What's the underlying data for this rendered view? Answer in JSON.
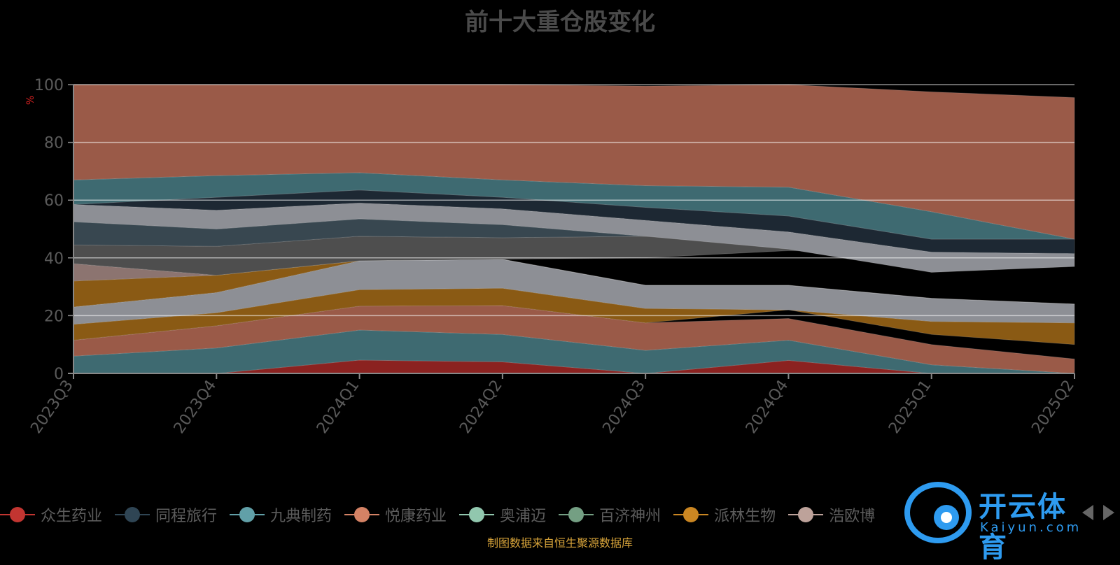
{
  "chart_data": {
    "type": "area",
    "title": "前十大重仓股变化",
    "ylabel": "%",
    "ylim": [
      0,
      100
    ],
    "yticks": [
      0,
      20,
      40,
      60,
      80,
      100
    ],
    "grid": true,
    "legend_position": "bottom",
    "categories": [
      "2023Q3",
      "2023Q4",
      "2024Q1",
      "2024Q2",
      "2024Q3",
      "2024Q4",
      "2025Q1",
      "2025Q2"
    ],
    "layers": [
      {
        "color": "#8b2220",
        "lower": [
          0,
          0,
          0,
          0,
          0,
          0,
          0,
          0
        ],
        "upper": [
          0,
          0,
          4.6,
          4,
          0,
          4.5,
          0,
          0
        ]
      },
      {
        "color": "#3e6a71",
        "lower": [
          0,
          0,
          4.6,
          4,
          0,
          4.5,
          0,
          0
        ],
        "upper": [
          6,
          8.8,
          15,
          13.5,
          8,
          11.5,
          3,
          0
        ]
      },
      {
        "color": "#9a5a48",
        "lower": [
          6,
          8.8,
          15,
          13.5,
          8,
          11.5,
          3,
          0
        ],
        "upper": [
          11.5,
          16.5,
          23.3,
          23.5,
          17.5,
          19,
          10,
          5
        ]
      },
      {
        "color": "#8a5a14",
        "lower": [
          11.5,
          16.5,
          23.3,
          23.5,
          17.5,
          22,
          13.5,
          10
        ]
      },
      {
        "color": "#8d8f95",
        "lower": [
          17,
          21,
          29,
          29.5,
          22.5,
          22,
          18,
          17.5
        ],
        "upper": [
          23,
          28,
          39,
          39.5,
          30.5,
          30.5,
          26,
          24
        ]
      },
      {
        "color": "#8a5a14",
        "lower": [
          23,
          28,
          39,
          39.5,
          30.5,
          30.5,
          26,
          24
        ],
        "upper": [
          32,
          34,
          39,
          39.5,
          30.5,
          30.5,
          26,
          24
        ]
      },
      {
        "color": "#8c7470",
        "lower": [
          32,
          34,
          39,
          39.5,
          30.5,
          30.5,
          26,
          24
        ],
        "upper": [
          38,
          34,
          39,
          39.5,
          30.5,
          30.5,
          26,
          24
        ]
      },
      {
        "color": "#4e4e4e",
        "lower": [
          38,
          34,
          39,
          39.5,
          40,
          42.5,
          42,
          41
        ],
        "upper": [
          44.5,
          44,
          47.5,
          47,
          47.5,
          48.5,
          42,
          41
        ]
      },
      {
        "color": "#384750",
        "lower": [
          44.5,
          44,
          47.5,
          47,
          47.5,
          48.5,
          42,
          41
        ],
        "upper": [
          52.5,
          50,
          53.5,
          51.5,
          47.5,
          48.5,
          42,
          41
        ]
      },
      {
        "color": "#8d8f95",
        "lower": [
          52.5,
          50,
          53.5,
          51.5,
          47.5,
          43,
          35,
          37
        ],
        "upper": [
          58.5,
          56.5,
          59,
          57,
          53,
          49,
          42,
          41.5
        ]
      },
      {
        "color": "#1d2833",
        "lower": [
          58.5,
          56.5,
          59,
          57,
          53,
          49,
          42,
          41.5
        ],
        "upper": [
          58.5,
          61,
          63.5,
          61,
          57.5,
          54.5,
          46.5,
          46.5
        ]
      },
      {
        "color": "#3e6a71",
        "lower": [
          58.5,
          61,
          63.5,
          61,
          57.5,
          54.5,
          46.5,
          46.5
        ],
        "upper": [
          67,
          68.5,
          69.5,
          67,
          65,
          64.5,
          56,
          46.5
        ]
      },
      {
        "color": "#9a5a48",
        "lower": [
          67,
          68.5,
          69.5,
          67,
          65,
          64.5,
          56,
          46.5
        ],
        "upper": [
          100,
          100,
          100,
          100,
          99.5,
          100,
          97.5,
          95.5
        ]
      }
    ],
    "series": [
      {
        "name": "众生药业",
        "color": "#c23531"
      },
      {
        "name": "同程旅行",
        "color": "#2f4554"
      },
      {
        "name": "九典制药",
        "color": "#61a0a8"
      },
      {
        "name": "悦康药业",
        "color": "#d48265"
      },
      {
        "name": "奥浦迈",
        "color": "#91c7ae"
      },
      {
        "name": "百济神州",
        "color": "#749f83"
      },
      {
        "name": "派林生物",
        "color": "#ca8622"
      },
      {
        "name": "浩欧博",
        "color": "#bda29a"
      }
    ]
  },
  "source": "制图数据来自恒生聚源数据库",
  "watermark": {
    "title": "开云体育",
    "sub": "Kaiyun.com"
  }
}
